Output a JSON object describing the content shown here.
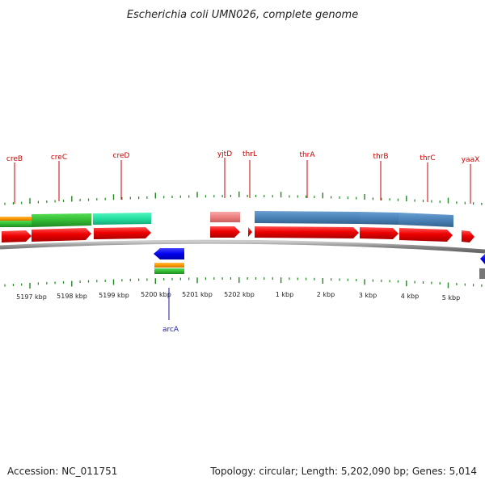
{
  "header": {
    "title": "Escherichia coli UMN026, complete genome"
  },
  "footer": {
    "accession": "Accession: NC_011751",
    "summary": "Topology: circular; Length: 5,202,090 bp; Genes: 5,014"
  },
  "colors": {
    "cds": "#ee0000",
    "gene_blue": "#4a82b8",
    "gene_green": "#33bb33",
    "gene_teal": "#22e0a0",
    "gene_pink": "#ee8080",
    "gene_orange": "#ff9900",
    "gene_reverse": "#0000ee",
    "tick": "#228822",
    "backbone": "#999999"
  },
  "ruler": {
    "labels": [
      "5197 kbp",
      "5198 kbp",
      "5199 kbp",
      "5200 kbp",
      "5201 kbp",
      "5202 kbp",
      "1 kbp",
      "2 kbp",
      "3 kbp",
      "4 kbp",
      "5 kbp"
    ]
  },
  "genes": {
    "forward": [
      "creB",
      "creC",
      "creD",
      "yjtD",
      "thrL",
      "thrA",
      "thrB",
      "thrC",
      "yaaX"
    ],
    "reverse": [
      "arcA"
    ]
  }
}
